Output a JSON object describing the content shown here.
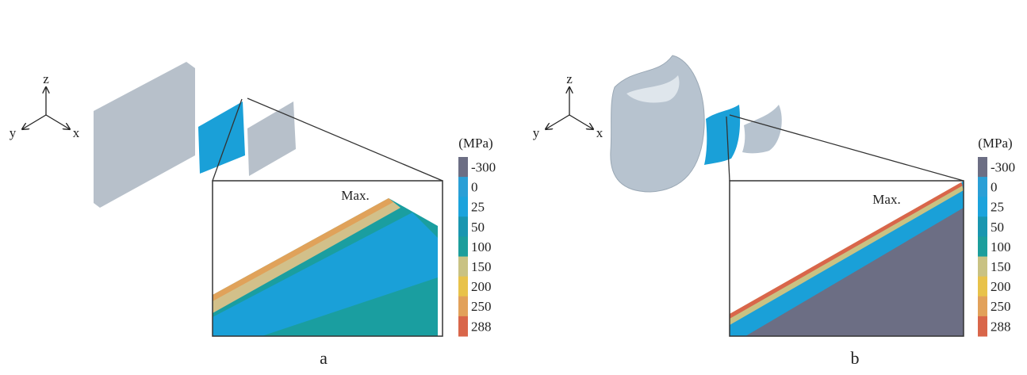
{
  "panels": [
    {
      "label": "a",
      "axes": {
        "z": "z",
        "y": "y",
        "x": "x"
      },
      "unit": "(MPa)",
      "max_label": "Max.",
      "scale": [
        {
          "label": "-300",
          "color": "#6c6e84"
        },
        {
          "label": "0",
          "color": "#2a9fd6"
        },
        {
          "label": "25",
          "color": "#1ba3dc"
        },
        {
          "label": "50",
          "color": "#1996b0"
        },
        {
          "label": "100",
          "color": "#1c9e9c"
        },
        {
          "label": "150",
          "color": "#c9c283"
        },
        {
          "label": "200",
          "color": "#e8c24a"
        },
        {
          "label": "250",
          "color": "#e2a15a"
        },
        {
          "label": "288",
          "color": "#d9664a"
        }
      ]
    },
    {
      "label": "b",
      "axes": {
        "z": "z",
        "y": "y",
        "x": "x"
      },
      "unit": "(MPa)",
      "max_label": "Max.",
      "scale": [
        {
          "label": "-300",
          "color": "#6c6e84"
        },
        {
          "label": "0",
          "color": "#2a9fd6"
        },
        {
          "label": "25",
          "color": "#1ba3dc"
        },
        {
          "label": "50",
          "color": "#1996b0"
        },
        {
          "label": "100",
          "color": "#1c9e9c"
        },
        {
          "label": "150",
          "color": "#c9c283"
        },
        {
          "label": "200",
          "color": "#e8c24a"
        },
        {
          "label": "250",
          "color": "#e2a15a"
        },
        {
          "label": "288",
          "color": "#d9664a"
        }
      ]
    }
  ]
}
